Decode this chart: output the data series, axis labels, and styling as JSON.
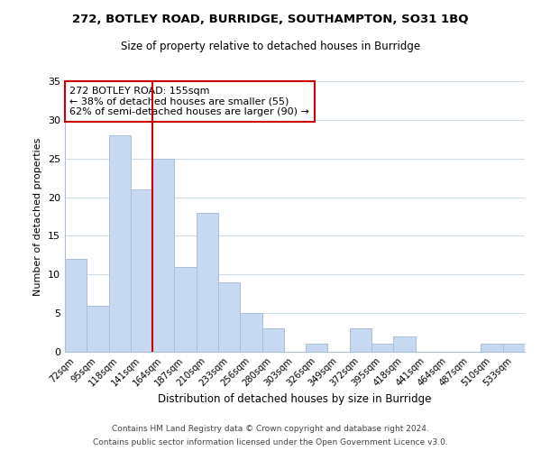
{
  "title": "272, BOTLEY ROAD, BURRIDGE, SOUTHAMPTON, SO31 1BQ",
  "subtitle": "Size of property relative to detached houses in Burridge",
  "xlabel": "Distribution of detached houses by size in Burridge",
  "ylabel": "Number of detached properties",
  "bar_labels": [
    "72sqm",
    "95sqm",
    "118sqm",
    "141sqm",
    "164sqm",
    "187sqm",
    "210sqm",
    "233sqm",
    "256sqm",
    "280sqm",
    "303sqm",
    "326sqm",
    "349sqm",
    "372sqm",
    "395sqm",
    "418sqm",
    "441sqm",
    "464sqm",
    "487sqm",
    "510sqm",
    "533sqm"
  ],
  "bar_values": [
    12,
    6,
    28,
    21,
    25,
    11,
    18,
    9,
    5,
    3,
    0,
    1,
    0,
    3,
    1,
    2,
    0,
    0,
    0,
    1,
    1
  ],
  "bar_color": "#c6d9f1",
  "bar_edge_color": "#aabfd8",
  "vline_x_index": 3.5,
  "vline_color": "#cc0000",
  "annotation_text": "272 BOTLEY ROAD: 155sqm\n← 38% of detached houses are smaller (55)\n62% of semi-detached houses are larger (90) →",
  "annotation_box_color": "#ffffff",
  "annotation_box_edge_color": "#cc0000",
  "ylim": [
    0,
    35
  ],
  "yticks": [
    0,
    5,
    10,
    15,
    20,
    25,
    30,
    35
  ],
  "footer1": "Contains HM Land Registry data © Crown copyright and database right 2024.",
  "footer2": "Contains public sector information licensed under the Open Government Licence v3.0.",
  "background_color": "#ffffff",
  "grid_color": "#d0dce8",
  "title_fontsize": 9.5,
  "subtitle_fontsize": 8.5,
  "ylabel_fontsize": 8.0,
  "xlabel_fontsize": 8.5,
  "xtick_fontsize": 7.2,
  "ytick_fontsize": 8.0,
  "annotation_fontsize": 8.0,
  "footer_fontsize": 6.5
}
